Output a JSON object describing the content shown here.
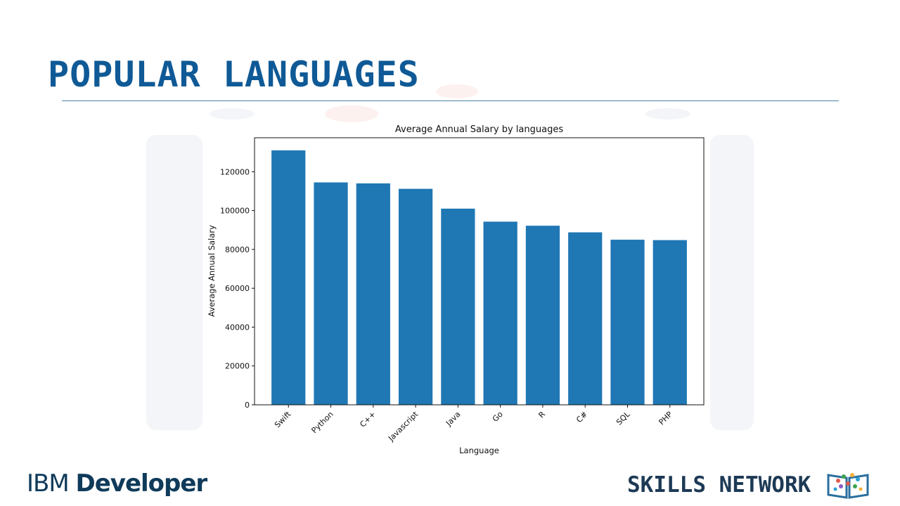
{
  "slide": {
    "title": "POPULAR LANGUAGES"
  },
  "footer": {
    "brand_left_part1": "IBM ",
    "brand_left_part2": "Developer",
    "brand_right": "SKILLS NETWORK",
    "logo_icon": "skills-network-book-icon"
  },
  "colors": {
    "title": "#0f5a96",
    "bar": "#1f77b4",
    "rule": "#4a86a8"
  },
  "chart_data": {
    "type": "bar",
    "title": "Average Annual Salary by languages",
    "xlabel": "Language",
    "ylabel": "Average Annual Salary",
    "categories": [
      "Swift",
      "Python",
      "C++",
      "Javascript",
      "Java",
      "Go",
      "R",
      "C#",
      "SQL",
      "PHP"
    ],
    "values": [
      131000,
      114500,
      114000,
      111200,
      101000,
      94300,
      92200,
      88800,
      85000,
      84800
    ],
    "ylim": [
      0,
      137500
    ],
    "yticks": [
      0,
      20000,
      40000,
      60000,
      80000,
      100000,
      120000
    ],
    "grid": false,
    "legend": "none",
    "xtick_rotation": -45
  }
}
